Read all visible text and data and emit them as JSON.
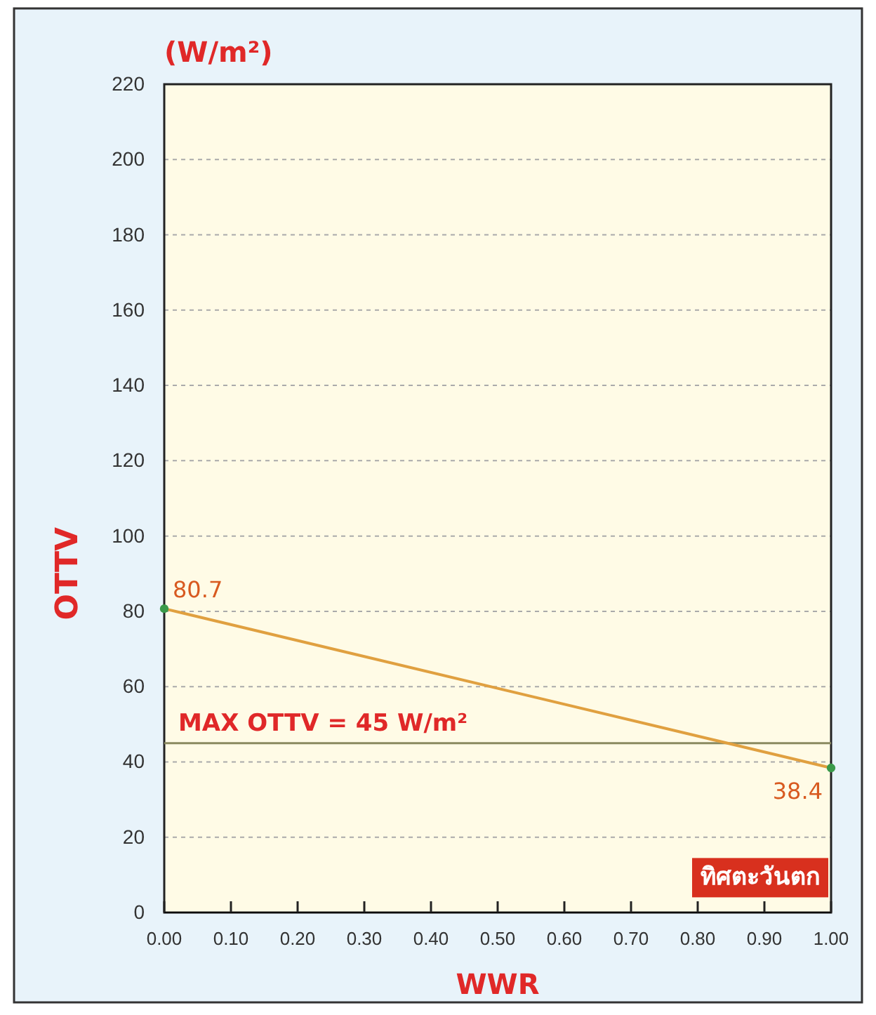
{
  "chart_data": {
    "type": "line",
    "title": "ทิศตะวันตก",
    "xlabel": "WWR",
    "ylabel": "OTTV",
    "annotations": [
      "(W/m²)"
    ],
    "x": [
      0,
      1
    ],
    "series": [
      {
        "color": "#e0a040",
        "values": [
          80.7,
          38.4
        ]
      }
    ],
    "data_labels": true,
    "marker": "circle",
    "xlim": [
      0,
      1
    ],
    "xticks": [
      {
        "value": 0,
        "label": "0.00"
      },
      {
        "value": 0.1,
        "label": "0.10"
      },
      {
        "value": 0.2,
        "label": "0.20"
      },
      {
        "value": 0.3,
        "label": "0.30"
      },
      {
        "value": 0.4,
        "label": "0.40"
      },
      {
        "value": 0.5,
        "label": "0.50"
      },
      {
        "value": 0.6,
        "label": "0.60"
      },
      {
        "value": 0.7,
        "label": "0.70"
      },
      {
        "value": 0.8,
        "label": "0.80"
      },
      {
        "value": 0.9,
        "label": "0.90"
      },
      {
        "value": 1,
        "label": "1.00"
      }
    ],
    "ylim": [
      0,
      220
    ],
    "yticks": [
      0,
      20,
      40,
      60,
      80,
      100,
      120,
      140,
      160,
      180,
      200,
      220
    ],
    "grid": "y",
    "ref_lines": [
      {
        "axis": "y",
        "value": 45,
        "label": "MAX OTTV = 45 W/m²",
        "color": "#8a8a60"
      }
    ]
  }
}
